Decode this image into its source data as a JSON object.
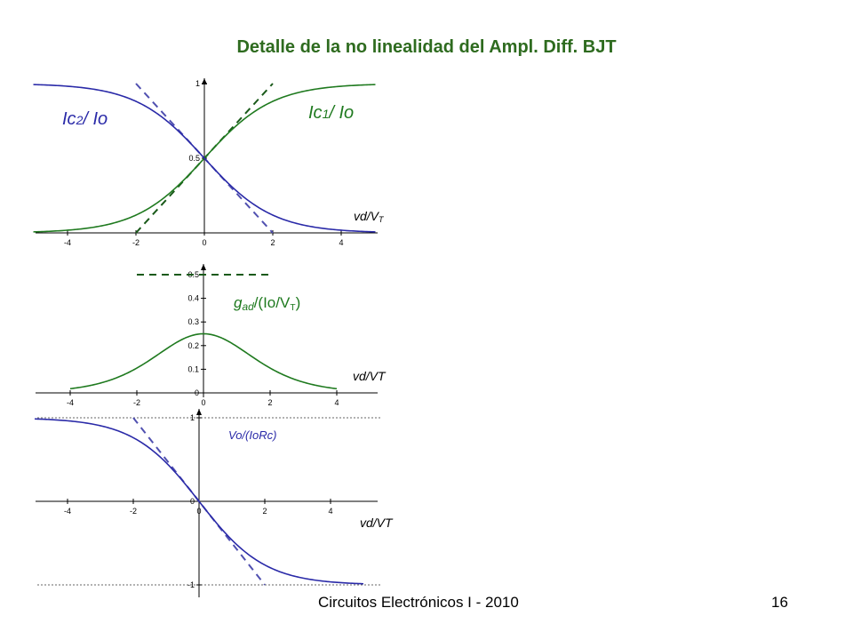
{
  "slide": {
    "title": "Detalle de la no linealidad del Ampl. Diff. BJT",
    "footer_course": "Circuitos Electrónicos I - 2010",
    "footer_page": "16"
  },
  "colors": {
    "title": "#2e6b1f",
    "green_curve": "#1f7a1f",
    "blue_curve": "#2a2aa8",
    "dashed_green": "#1a5a1a",
    "dashed_blue": "#5050b0"
  },
  "chart_data": [
    {
      "type": "line",
      "xlim": [
        -5,
        5
      ],
      "ylim": [
        0,
        1
      ],
      "x_ticks": [
        -4,
        -2,
        0,
        2,
        4
      ],
      "y_ticks": [
        {
          "v": 0.5,
          "label": "0.5"
        },
        {
          "v": 1,
          "label": "1"
        }
      ],
      "xlabel": {
        "main": "vd/V",
        "sub": "T"
      },
      "series": [
        {
          "name": "Ic1/ Io",
          "label_main": "Ic",
          "label_sub": "1",
          "label_rest": "/ Io",
          "color": "#1f7a1f",
          "formula": "1/(1+exp(-x))",
          "x_range": [
            -5,
            5
          ]
        },
        {
          "name": "Ic2/ Io",
          "label_main": "Ic",
          "label_sub": "2",
          "label_rest": "/ Io",
          "color": "#2a2aa8",
          "formula": "1/(1+exp(x))",
          "x_range": [
            -5,
            5
          ]
        }
      ],
      "asymptote_lines": [
        {
          "points": [
            [
              -2,
              0
            ],
            [
              2,
              1
            ]
          ],
          "color": "#1a5a1a"
        },
        {
          "points": [
            [
              -2,
              1
            ],
            [
              2,
              0
            ]
          ],
          "color": "#5050b0"
        }
      ]
    },
    {
      "type": "line",
      "xlim": [
        -4.8,
        5
      ],
      "ylim": [
        0,
        0.55
      ],
      "x_ticks": [
        -4,
        -2,
        0,
        2,
        4
      ],
      "y_ticks": [
        {
          "v": 0,
          "label": "0"
        },
        {
          "v": 0.1,
          "label": "0.1"
        },
        {
          "v": 0.2,
          "label": "0.2"
        },
        {
          "v": 0.3,
          "label": "0.3"
        },
        {
          "v": 0.4,
          "label": "0.4"
        },
        {
          "v": 0.5,
          "label": "0.5"
        }
      ],
      "xlabel": {
        "main": "vd/VT",
        "sub": ""
      },
      "series": [
        {
          "name": "gad/(Io/VT)",
          "label_main": "g",
          "label_sub": "ad",
          "label_rest": "/(Io/V",
          "label_sub2": "T",
          "label_end": ")",
          "color": "#1f7a1f",
          "formula": "exp(x)/(1+exp(x))^2",
          "x_range": [
            -4,
            4
          ]
        }
      ],
      "asymptote_lines": [
        {
          "points": [
            [
              -2,
              0.5
            ],
            [
              2,
              0.5
            ]
          ],
          "color": "#1a5a1a"
        }
      ]
    },
    {
      "type": "line",
      "xlim": [
        -5,
        5
      ],
      "ylim": [
        -1.05,
        1.05
      ],
      "x_ticks": [
        -4,
        -2,
        0,
        2,
        4
      ],
      "y_ticks": [
        {
          "v": -1,
          "label": "-1"
        },
        {
          "v": 0,
          "label": "0"
        },
        {
          "v": 1,
          "label": "1"
        }
      ],
      "xlabel": {
        "main": "vd/VT",
        "sub": ""
      },
      "series": [
        {
          "name": "Vo/(IoRc)",
          "label_main": "Vo/(IoRc)",
          "color": "#2a2aa8",
          "formula": "-tanh(x/2)",
          "x_range": [
            -5,
            5
          ]
        }
      ],
      "asymptote_lines": [
        {
          "points": [
            [
              -2,
              1
            ],
            [
              2,
              -1
            ]
          ],
          "color": "#5050b0"
        }
      ],
      "reference_lines": [
        1,
        -1
      ]
    }
  ]
}
